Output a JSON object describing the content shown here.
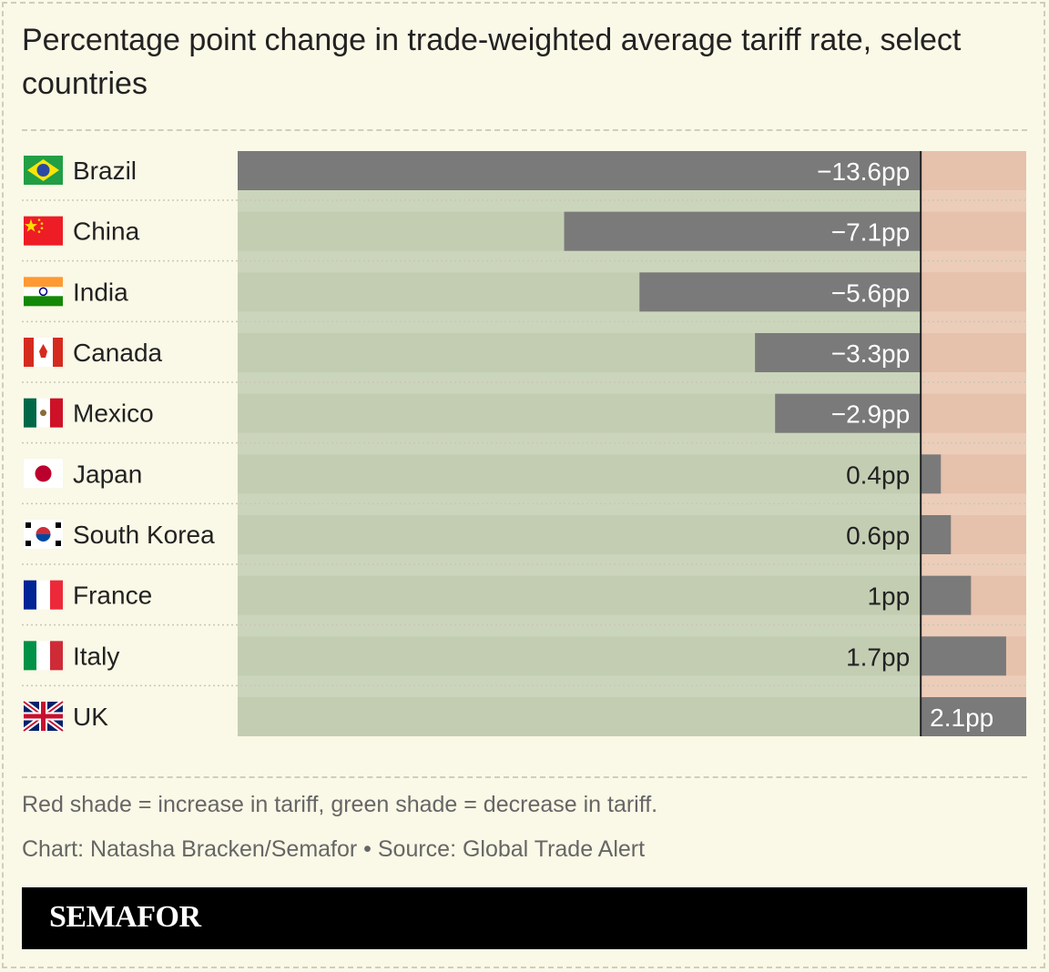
{
  "title": "Percentage point change in trade-weighted average tariff rate, select countries",
  "notes": {
    "legend": "Red shade = increase in tariff, green shade = decrease in tariff.",
    "credit": "Chart: Natasha Bracken/Semafor • Source: Global Trade Alert"
  },
  "brand": "SEMAFOR",
  "colors": {
    "background": "#faf8e6",
    "decrease_shade": "#c3cdb2",
    "increase_shade": "#e6c1ac",
    "bar": "#7a7a7a",
    "zero_line": "#222222"
  },
  "chart_data": {
    "type": "bar",
    "orientation": "horizontal",
    "title": "Percentage point change in trade-weighted average tariff rate, select countries",
    "categories": [
      "Brazil",
      "China",
      "India",
      "Canada",
      "Mexico",
      "Japan",
      "South Korea",
      "France",
      "Italy",
      "UK"
    ],
    "flag_icons": [
      "brazil-flag-icon",
      "china-flag-icon",
      "india-flag-icon",
      "canada-flag-icon",
      "mexico-flag-icon",
      "japan-flag-icon",
      "south-korea-flag-icon",
      "france-flag-icon",
      "italy-flag-icon",
      "uk-flag-icon"
    ],
    "values": [
      -13.6,
      -7.1,
      -5.6,
      -3.3,
      -2.9,
      0.4,
      0.6,
      1,
      1.7,
      2.1
    ],
    "labels": [
      "−13.6pp",
      "−7.1pp",
      "−5.6pp",
      "−3.3pp",
      "−2.9pp",
      "0.4pp",
      "0.6pp",
      "1pp",
      "1.7pp",
      "2.1pp"
    ],
    "xlim": [
      -13.6,
      2.1
    ],
    "unit": "pp",
    "grid": false,
    "legend": "none"
  }
}
